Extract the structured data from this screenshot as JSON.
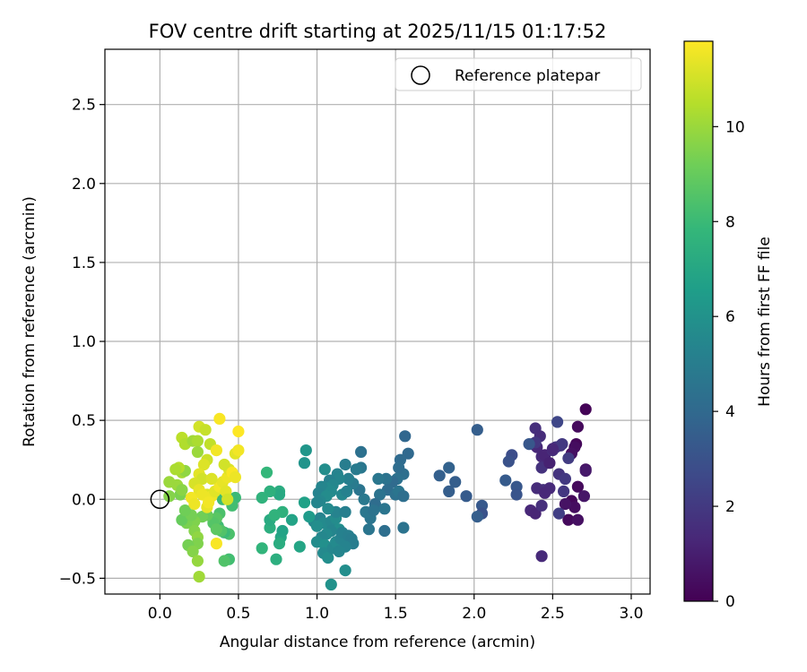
{
  "chart_data": {
    "type": "scatter",
    "title": "FOV centre drift starting at 2025/11/15 01:17:52",
    "xlabel": "Angular distance from reference (arcmin)",
    "ylabel": "Rotation from reference (arcmin)",
    "xlim": [
      -0.35,
      3.12
    ],
    "ylim": [
      -0.6,
      2.85
    ],
    "xticks": [
      0.0,
      0.5,
      1.0,
      1.5,
      2.0,
      2.5,
      3.0
    ],
    "xtick_labels": [
      "0.0",
      "0.5",
      "1.0",
      "1.5",
      "2.0",
      "2.5",
      "3.0"
    ],
    "yticks": [
      -0.5,
      0.0,
      0.5,
      1.0,
      1.5,
      2.0,
      2.5
    ],
    "ytick_labels": [
      "−0.5",
      "0.0",
      "0.5",
      "1.0",
      "1.5",
      "2.0",
      "2.5"
    ],
    "grid": true,
    "legend": {
      "position": "top-right",
      "entries": [
        "Reference platepar"
      ]
    },
    "reference_point": {
      "x": 0.0,
      "y": 0.0,
      "label": "Reference platepar"
    },
    "colorbar": {
      "label": "Hours from first FF file",
      "range": [
        0,
        11.8
      ],
      "ticks": [
        0,
        2,
        4,
        6,
        8,
        10
      ],
      "tick_labels": [
        "0",
        "2",
        "4",
        "6",
        "8",
        "10"
      ],
      "colormap": "viridis",
      "colors": [
        "#440154",
        "#482878",
        "#3e4989",
        "#31688e",
        "#26828e",
        "#1f9e89",
        "#35b779",
        "#6ece58",
        "#b5de2b",
        "#fde725"
      ]
    },
    "series": [
      {
        "points": [
          [
            2.71,
            0.57,
            0.1
          ],
          [
            2.66,
            0.46,
            0.3
          ],
          [
            2.65,
            0.35,
            0.2
          ],
          [
            2.64,
            0.33,
            0.4
          ],
          [
            2.62,
            0.29,
            0.5
          ],
          [
            2.71,
            0.19,
            0.6
          ],
          [
            2.66,
            0.08,
            0.3
          ],
          [
            2.62,
            -0.01,
            0.2
          ],
          [
            2.64,
            -0.05,
            0.4
          ],
          [
            2.58,
            -0.03,
            0.6
          ],
          [
            2.6,
            -0.13,
            0.3
          ],
          [
            2.66,
            -0.13,
            0.5
          ],
          [
            2.7,
            0.02,
            0.7
          ],
          [
            2.71,
            0.18,
            0.8
          ],
          [
            2.39,
            0.45,
            1.6
          ],
          [
            2.42,
            0.4,
            1.5
          ],
          [
            2.37,
            0.35,
            1.8
          ],
          [
            2.4,
            0.33,
            1.3
          ],
          [
            2.43,
            0.27,
            1.4
          ],
          [
            2.45,
            0.28,
            1.2
          ],
          [
            2.5,
            0.31,
            1.6
          ],
          [
            2.52,
            0.33,
            1.9
          ],
          [
            2.55,
            0.34,
            1.7
          ],
          [
            2.53,
            0.49,
            2.5
          ],
          [
            2.56,
            0.35,
            2.0
          ],
          [
            2.6,
            0.26,
            2.1
          ],
          [
            2.54,
            0.16,
            1.8
          ],
          [
            2.43,
            0.2,
            1.7
          ],
          [
            2.58,
            0.13,
            2.0
          ],
          [
            2.57,
            0.05,
            1.9
          ],
          [
            2.44,
            0.06,
            1.7
          ],
          [
            2.4,
            0.07,
            1.5
          ],
          [
            2.48,
            0.07,
            1.4
          ],
          [
            2.45,
            0.04,
            1.3
          ],
          [
            2.36,
            -0.07,
            1.3
          ],
          [
            2.39,
            -0.09,
            1.2
          ],
          [
            2.43,
            -0.04,
            1.6
          ],
          [
            2.54,
            -0.09,
            2.2
          ],
          [
            2.43,
            -0.36,
            1.4
          ],
          [
            2.39,
            0.36,
            1.9
          ],
          [
            2.48,
            0.23,
            1.1
          ],
          [
            2.5,
            0.32,
            1.3
          ],
          [
            2.35,
            0.35,
            3.2
          ],
          [
            2.24,
            0.28,
            2.8
          ],
          [
            2.22,
            0.24,
            3.0
          ],
          [
            2.27,
            0.08,
            3.2
          ],
          [
            2.27,
            0.03,
            3.1
          ],
          [
            2.2,
            0.12,
            3.4
          ],
          [
            2.05,
            -0.04,
            3.3
          ],
          [
            2.05,
            -0.09,
            3.0
          ],
          [
            2.02,
            -0.11,
            3.5
          ],
          [
            1.95,
            0.02,
            3.4
          ],
          [
            1.88,
            0.11,
            3.5
          ],
          [
            1.84,
            0.2,
            3.7
          ],
          [
            1.84,
            0.05,
            3.5
          ],
          [
            1.78,
            0.15,
            3.6
          ],
          [
            2.02,
            0.44,
            3.5
          ],
          [
            1.56,
            0.4,
            3.9
          ],
          [
            1.58,
            0.29,
            4.0
          ],
          [
            1.53,
            0.25,
            4.1
          ],
          [
            1.55,
            0.16,
            4.3
          ],
          [
            1.52,
            0.2,
            4.2
          ],
          [
            1.51,
            0.13,
            4.4
          ],
          [
            1.48,
            0.11,
            4.1
          ],
          [
            1.44,
            0.13,
            4.5
          ],
          [
            1.45,
            0.06,
            4.2
          ],
          [
            1.5,
            0.03,
            4.4
          ],
          [
            1.52,
            0.05,
            4.6
          ],
          [
            1.55,
            0.02,
            4.3
          ],
          [
            1.4,
            0.03,
            4.5
          ],
          [
            1.37,
            -0.03,
            4.2
          ],
          [
            1.43,
            -0.06,
            4.6
          ],
          [
            1.55,
            -0.18,
            4.5
          ],
          [
            1.43,
            -0.2,
            4.3
          ],
          [
            1.34,
            -0.12,
            4.6
          ],
          [
            1.31,
            -0.08,
            4.7
          ],
          [
            1.36,
            -0.07,
            4.5
          ],
          [
            1.3,
            0.0,
            4.8
          ],
          [
            1.27,
            0.06,
            4.6
          ],
          [
            1.23,
            0.1,
            4.9
          ],
          [
            1.28,
            0.2,
            4.7
          ],
          [
            1.25,
            0.19,
            4.9
          ],
          [
            1.28,
            0.3,
            4.4
          ],
          [
            1.18,
            0.22,
            5.0
          ],
          [
            1.2,
            0.13,
            5.1
          ],
          [
            1.33,
            -0.19,
            4.6
          ],
          [
            1.39,
            0.13,
            4.7
          ],
          [
            1.13,
            0.16,
            5.3
          ],
          [
            1.14,
            0.13,
            5.4
          ],
          [
            1.08,
            0.12,
            5.2
          ],
          [
            1.1,
            0.09,
            5.5
          ],
          [
            1.06,
            0.07,
            5.6
          ],
          [
            1.03,
            0.08,
            5.4
          ],
          [
            1.01,
            0.04,
            5.3
          ],
          [
            1.09,
            0.05,
            5.6
          ],
          [
            1.06,
            0.02,
            5.7
          ],
          [
            1.02,
            -0.01,
            5.5
          ],
          [
            1.0,
            -0.02,
            5.4
          ],
          [
            0.98,
            -0.14,
            5.5
          ],
          [
            1.02,
            -0.12,
            5.3
          ],
          [
            1.04,
            -0.15,
            5.6
          ],
          [
            1.0,
            -0.17,
            5.8
          ],
          [
            1.09,
            -0.14,
            5.5
          ],
          [
            1.12,
            -0.12,
            5.7
          ],
          [
            1.14,
            -0.19,
            5.8
          ],
          [
            1.09,
            -0.2,
            5.4
          ],
          [
            1.06,
            -0.22,
            5.6
          ],
          [
            1.03,
            -0.24,
            5.5
          ],
          [
            1.0,
            -0.27,
            5.7
          ],
          [
            1.05,
            -0.29,
            5.9
          ],
          [
            1.04,
            -0.34,
            5.6
          ],
          [
            1.07,
            -0.37,
            5.8
          ],
          [
            1.1,
            -0.31,
            5.5
          ],
          [
            1.12,
            -0.27,
            5.6
          ],
          [
            1.15,
            -0.25,
            5.3
          ],
          [
            1.16,
            -0.21,
            5.2
          ],
          [
            1.2,
            -0.23,
            5.1
          ],
          [
            1.22,
            -0.25,
            5.0
          ],
          [
            1.23,
            -0.28,
            5.0
          ],
          [
            1.18,
            -0.3,
            5.3
          ],
          [
            1.14,
            -0.33,
            5.4
          ],
          [
            1.18,
            -0.45,
            5.8
          ],
          [
            1.09,
            -0.54,
            6.0
          ],
          [
            1.12,
            -0.08,
            5.3
          ],
          [
            1.07,
            -0.06,
            5.6
          ],
          [
            1.05,
            0.19,
            5.8
          ],
          [
            0.93,
            0.31,
            6.2
          ],
          [
            0.92,
            0.23,
            6.1
          ],
          [
            1.18,
            -0.08,
            5.1
          ],
          [
            1.16,
            0.03,
            5.5
          ],
          [
            1.19,
            0.05,
            5.2
          ],
          [
            0.92,
            -0.02,
            6.7
          ],
          [
            0.95,
            -0.11,
            6.4
          ],
          [
            0.89,
            -0.3,
            6.9
          ],
          [
            0.84,
            -0.13,
            6.8
          ],
          [
            0.77,
            -0.24,
            7.0
          ],
          [
            0.78,
            -0.2,
            6.8
          ],
          [
            0.76,
            0.05,
            7.3
          ],
          [
            0.76,
            0.03,
            7.1
          ],
          [
            0.78,
            -0.08,
            7.5
          ],
          [
            0.76,
            -0.28,
            7.3
          ],
          [
            0.74,
            -0.38,
            7.4
          ],
          [
            0.7,
            -0.18,
            7.4
          ],
          [
            0.7,
            -0.13,
            7.2
          ],
          [
            0.73,
            -0.1,
            7.6
          ],
          [
            0.7,
            0.05,
            7.5
          ],
          [
            0.68,
            0.17,
            7.8
          ],
          [
            0.65,
            0.01,
            7.6
          ],
          [
            0.65,
            -0.31,
            7.7
          ],
          [
            0.48,
            0.01,
            8.0
          ],
          [
            0.46,
            -0.04,
            8.2
          ],
          [
            0.44,
            -0.22,
            8.4
          ],
          [
            0.41,
            -0.21,
            8.0
          ],
          [
            0.44,
            -0.38,
            8.2
          ],
          [
            0.41,
            -0.39,
            8.5
          ],
          [
            0.37,
            -0.17,
            8.1
          ],
          [
            0.38,
            -0.09,
            8.4
          ],
          [
            0.36,
            -0.12,
            8.7
          ],
          [
            0.34,
            -0.15,
            8.6
          ],
          [
            0.39,
            -0.2,
            8.5
          ],
          [
            0.36,
            -0.19,
            8.8
          ],
          [
            0.4,
            0.0,
            8.0
          ],
          [
            0.3,
            -0.1,
            9.0
          ],
          [
            0.27,
            -0.11,
            9.2
          ],
          [
            0.22,
            -0.14,
            9.5
          ],
          [
            0.17,
            -0.15,
            9.4
          ],
          [
            0.14,
            -0.13,
            9.0
          ],
          [
            0.2,
            -0.1,
            9.3
          ],
          [
            0.22,
            -0.2,
            9.6
          ],
          [
            0.24,
            -0.24,
            9.8
          ],
          [
            0.24,
            -0.28,
            9.5
          ],
          [
            0.18,
            -0.29,
            9.3
          ],
          [
            0.21,
            -0.33,
            9.6
          ],
          [
            0.24,
            -0.39,
            9.9
          ],
          [
            0.25,
            -0.49,
            10.1
          ],
          [
            0.16,
            -0.07,
            9.2
          ],
          [
            0.13,
            0.03,
            9.4
          ],
          [
            0.11,
            0.09,
            10.0
          ],
          [
            0.14,
            0.06,
            9.7
          ],
          [
            0.14,
            0.17,
            10.2
          ],
          [
            0.16,
            0.18,
            9.8
          ],
          [
            0.12,
            0.2,
            10.5
          ],
          [
            0.1,
            0.19,
            10.3
          ],
          [
            0.06,
            0.11,
            10.0
          ],
          [
            0.06,
            0.02,
            9.6
          ],
          [
            0.14,
            0.39,
            10.6
          ],
          [
            0.16,
            0.35,
            10.4
          ],
          [
            0.21,
            0.37,
            10.1
          ],
          [
            0.24,
            0.37,
            10.3
          ],
          [
            0.25,
            0.46,
            11.0
          ],
          [
            0.29,
            0.44,
            10.8
          ],
          [
            0.32,
            0.35,
            10.7
          ],
          [
            0.24,
            0.3,
            10.0
          ],
          [
            0.3,
            0.25,
            10.9
          ],
          [
            0.28,
            0.22,
            11.2
          ],
          [
            0.25,
            0.16,
            11.3
          ],
          [
            0.27,
            0.13,
            11.0
          ],
          [
            0.22,
            0.1,
            11.1
          ],
          [
            0.25,
            0.06,
            11.4
          ],
          [
            0.3,
            0.03,
            11.2
          ],
          [
            0.33,
            0.02,
            11.5
          ],
          [
            0.35,
            0.05,
            11.3
          ],
          [
            0.38,
            0.08,
            11.6
          ],
          [
            0.4,
            0.11,
            11.4
          ],
          [
            0.43,
            0.14,
            11.5
          ],
          [
            0.44,
            0.19,
            11.2
          ],
          [
            0.41,
            0.22,
            11.0
          ],
          [
            0.46,
            0.17,
            11.7
          ],
          [
            0.48,
            0.14,
            11.5
          ],
          [
            0.48,
            0.29,
            11.3
          ],
          [
            0.36,
            0.31,
            11.6
          ],
          [
            0.38,
            0.51,
            11.7
          ],
          [
            0.5,
            0.43,
            11.8
          ],
          [
            0.5,
            0.31,
            11.6
          ],
          [
            0.36,
            -0.28,
            11.7
          ],
          [
            0.2,
            0.01,
            11.6
          ],
          [
            0.22,
            -0.03,
            11.5
          ],
          [
            0.3,
            -0.05,
            11.4
          ],
          [
            0.42,
            0.05,
            11.3
          ],
          [
            0.43,
            0.0,
            11.0
          ],
          [
            0.33,
            0.13,
            11.2
          ],
          [
            0.27,
            0.03,
            11.5
          ],
          [
            0.31,
            -0.02,
            11.6
          ]
        ]
      }
    ]
  }
}
